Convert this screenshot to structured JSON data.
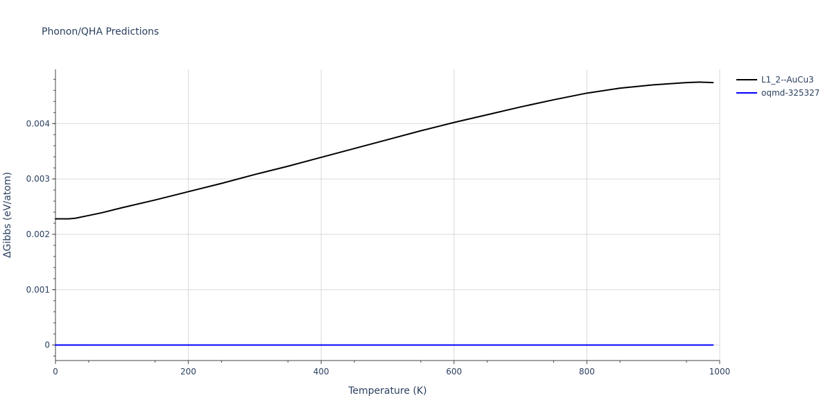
{
  "chart_data": {
    "type": "line",
    "title": "Phonon/QHA Predictions",
    "xlabel": "Temperature (K)",
    "ylabel": "ΔGibbs (eV/atom)",
    "xlim": [
      0,
      1000
    ],
    "ylim": [
      -0.00028,
      0.00498
    ],
    "x_ticks": [
      0,
      200,
      400,
      600,
      800,
      1000
    ],
    "x_tick_labels": [
      "0",
      "200",
      "400",
      "600",
      "800",
      "1000"
    ],
    "y_ticks": [
      0,
      0.001,
      0.002,
      0.003,
      0.004
    ],
    "y_tick_labels": [
      "0",
      "0.001",
      "0.002",
      "0.003",
      "0.004"
    ],
    "grid": true,
    "legend_position": "top-right",
    "series": [
      {
        "name": "L1_2--AuCu3",
        "color": "#000000",
        "x": [
          0,
          10,
          20,
          30,
          50,
          70,
          100,
          150,
          200,
          250,
          300,
          350,
          400,
          450,
          500,
          550,
          600,
          650,
          700,
          750,
          800,
          850,
          900,
          950,
          970,
          990
        ],
        "y": [
          0.00228,
          0.00228,
          0.00228,
          0.00229,
          0.00234,
          0.00239,
          0.00248,
          0.00262,
          0.00277,
          0.00292,
          0.00308,
          0.00323,
          0.00339,
          0.00355,
          0.00371,
          0.00387,
          0.00402,
          0.00416,
          0.0043,
          0.00443,
          0.00455,
          0.00464,
          0.0047,
          0.00474,
          0.00475,
          0.00474
        ]
      },
      {
        "name": "oqmd-325327",
        "color": "#0000ff",
        "x": [
          0,
          990
        ],
        "y": [
          0,
          0
        ]
      }
    ]
  }
}
